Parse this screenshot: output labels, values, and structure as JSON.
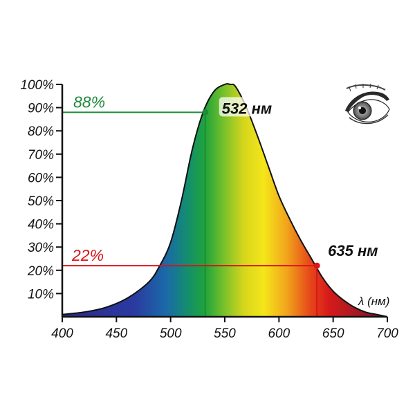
{
  "chart_data": {
    "type": "area",
    "title": "",
    "xlabel": "λ (нм)",
    "ylabel": "",
    "xlim": [
      400,
      700
    ],
    "ylim": [
      0,
      100
    ],
    "x_ticks": [
      "400",
      "450",
      "500",
      "550",
      "600",
      "650",
      "700"
    ],
    "y_ticks": [
      "10%",
      "20%",
      "30%",
      "40%",
      "50%",
      "60%",
      "70%",
      "80%",
      "90%",
      "100%"
    ],
    "x": [
      400,
      420,
      440,
      460,
      480,
      490,
      500,
      510,
      520,
      530,
      540,
      550,
      555,
      560,
      570,
      580,
      590,
      600,
      610,
      620,
      630,
      640,
      650,
      660,
      670,
      680,
      690,
      700
    ],
    "values": [
      1,
      2,
      4,
      8,
      15,
      22,
      32,
      50,
      72,
      88,
      97,
      100,
      100,
      99,
      90,
      78,
      65,
      52,
      42,
      33,
      25,
      17,
      11,
      7,
      4,
      2,
      1,
      0
    ],
    "fill": "visible spectrum gradient",
    "annotations": [
      {
        "percent_label": "88%",
        "wavelength_label": "532 нм",
        "x": 532,
        "y": 88,
        "color": "#1e8a3a"
      },
      {
        "percent_label": "22%",
        "wavelength_label": "635 нм",
        "x": 635,
        "y": 22,
        "color": "#d9141b"
      }
    ]
  },
  "decoration": {
    "icon": "eye-icon"
  }
}
